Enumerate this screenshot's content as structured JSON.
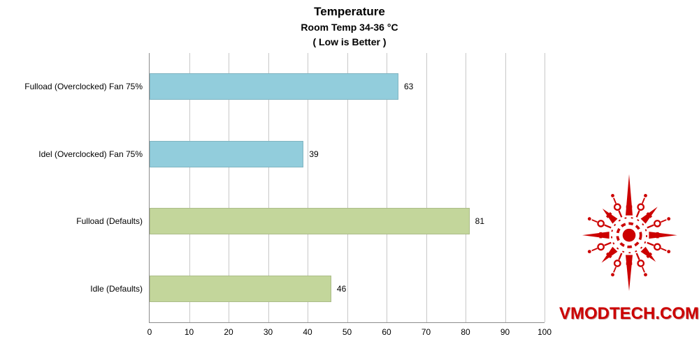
{
  "chart_data": {
    "type": "bar",
    "orientation": "horizontal",
    "title": "Temperature",
    "subtitle": "Room Temp 34-36 °C",
    "note": "( Low is Better )",
    "categories": [
      "Fulload (Overclocked) Fan 75%",
      "Idel (Overclocked) Fan 75%",
      "Fulload (Defaults)",
      "Idle (Defaults)"
    ],
    "values": [
      63,
      39,
      81,
      46
    ],
    "bar_colors": [
      "#92CDDC",
      "#92CDDC",
      "#C3D69B",
      "#C3D69B"
    ],
    "xlabel": "",
    "ylabel": "",
    "xlim": [
      0,
      100
    ],
    "xticks": [
      0,
      10,
      20,
      30,
      40,
      50,
      60,
      70,
      80,
      90,
      100
    ],
    "grid": true,
    "legend": "none",
    "value_labels_shown": true
  },
  "watermark": {
    "text": "VMODTECH.COM",
    "color": "#CC0000"
  }
}
